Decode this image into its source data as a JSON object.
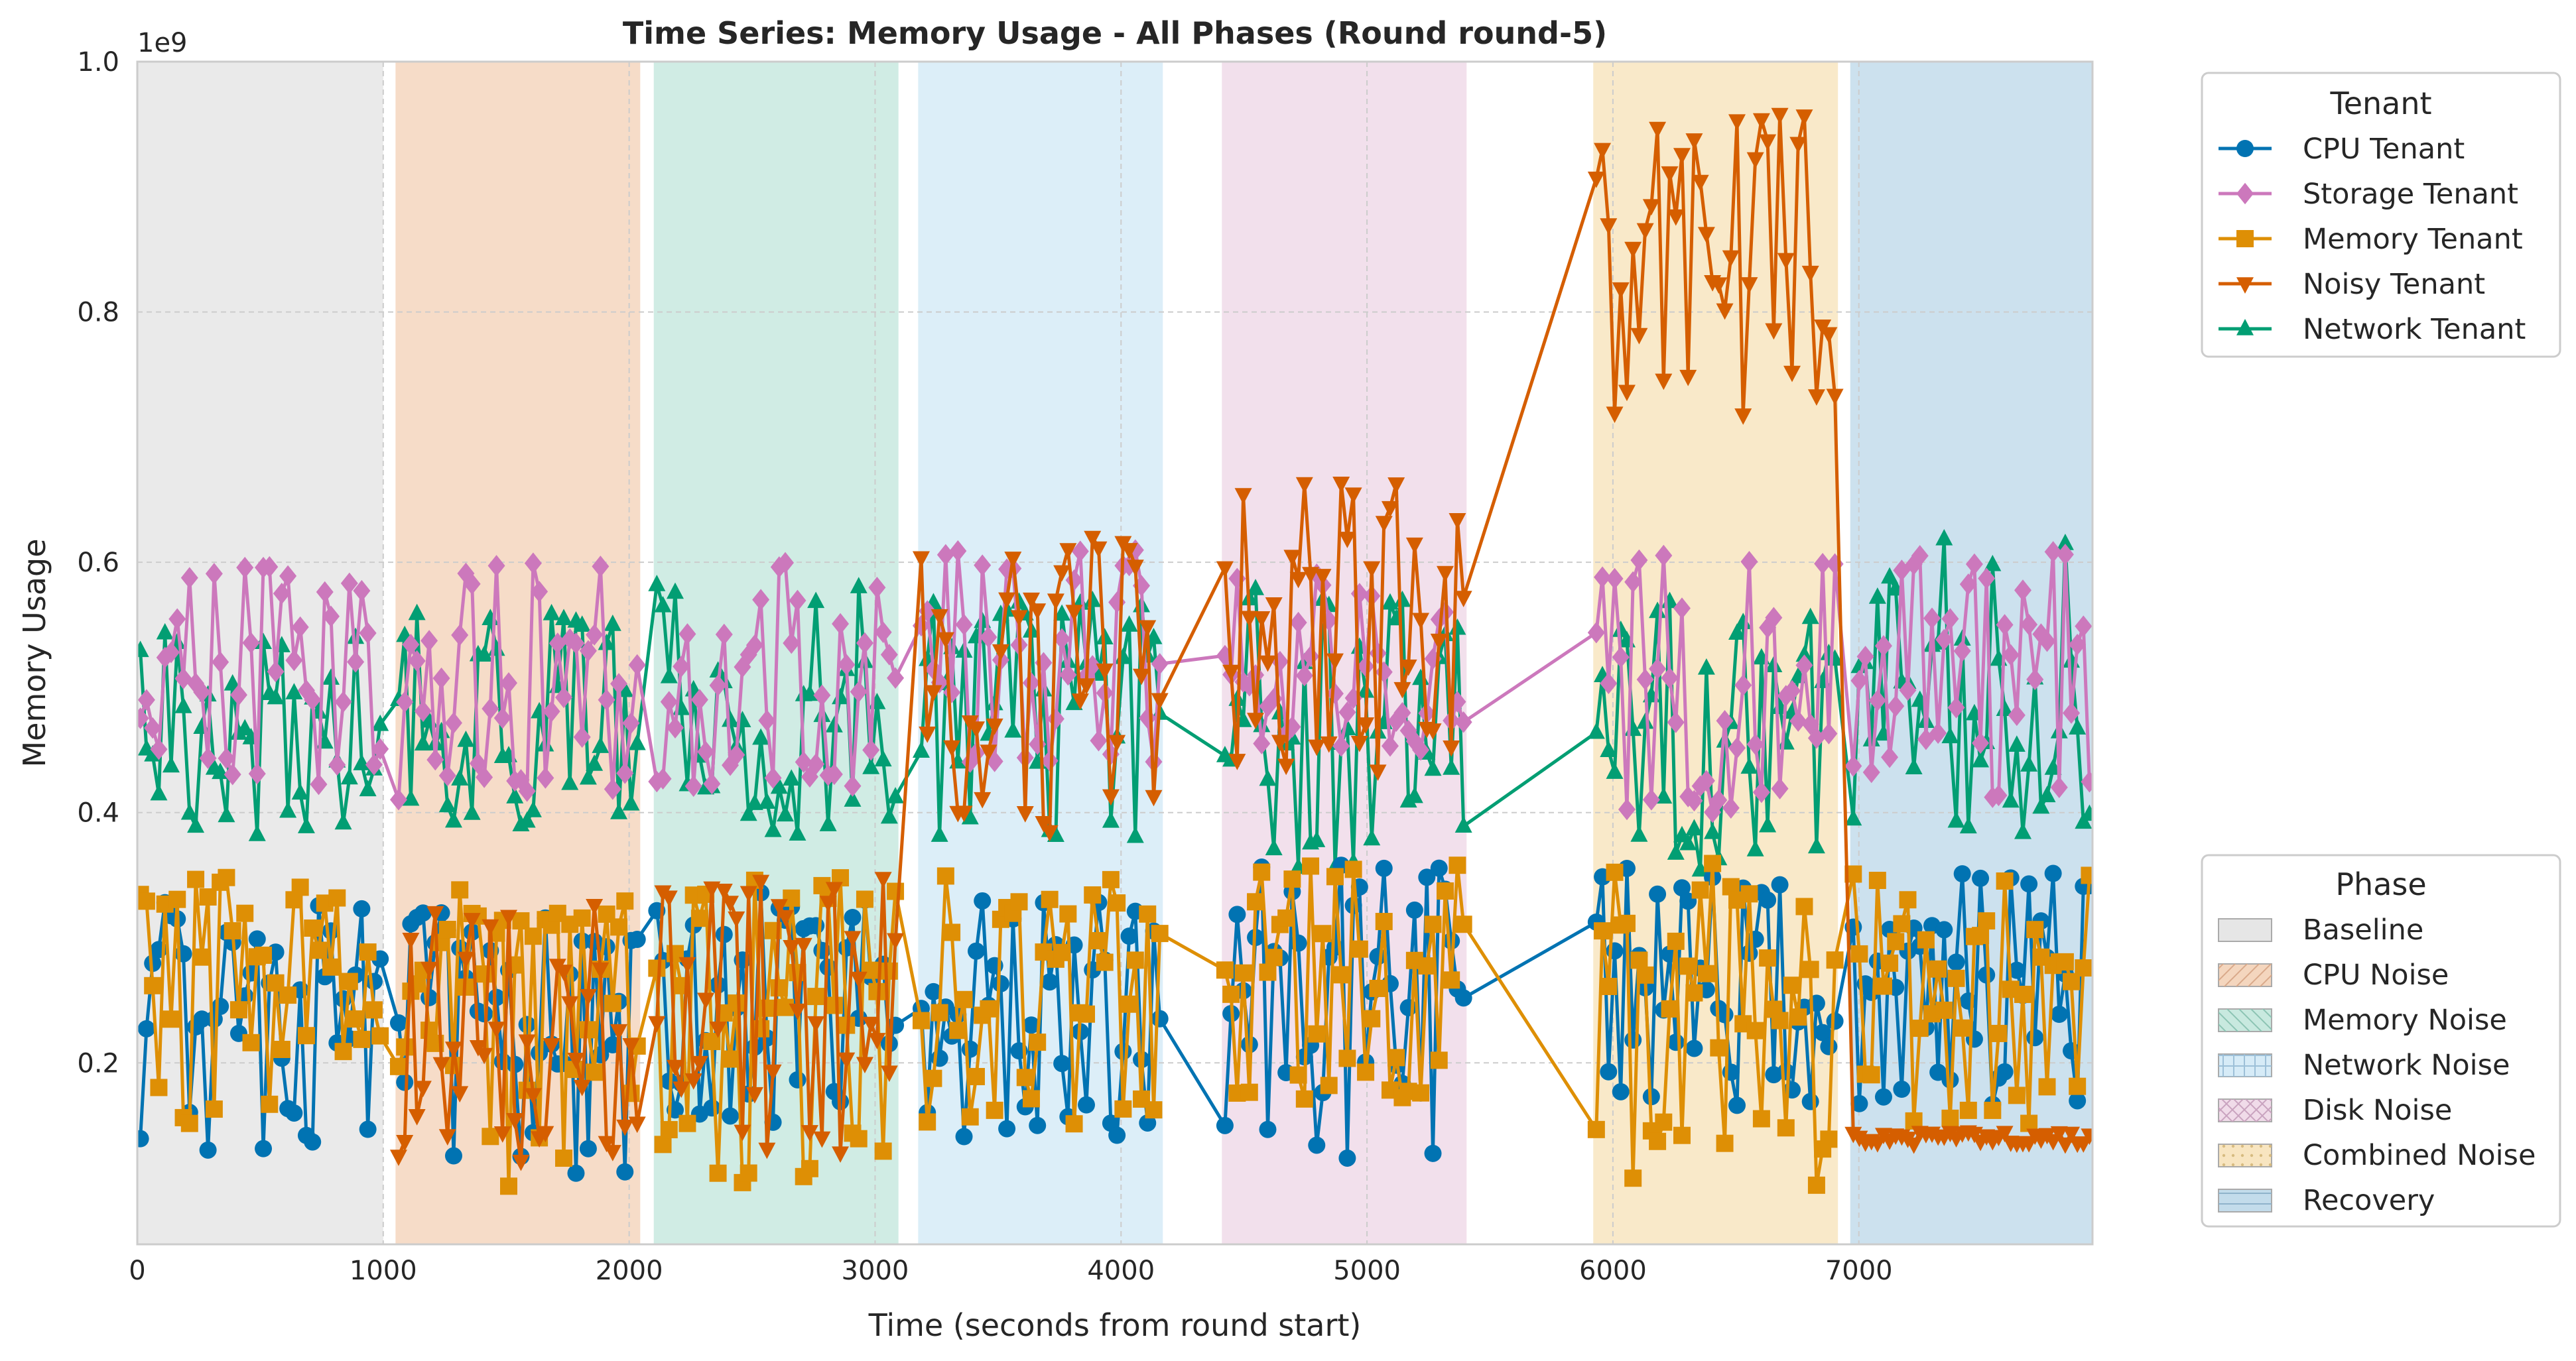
{
  "chart_data": {
    "type": "line",
    "title": "Time Series: Memory Usage - All Phases (Round round-5)",
    "xlabel": "Time (seconds from round start)",
    "ylabel": "Memory Usage",
    "y_offset_label": "1e9",
    "xlim": [
      0,
      7950
    ],
    "ylim": [
      0.055,
      1.0
    ],
    "x_ticks": [
      0,
      1000,
      2000,
      3000,
      4000,
      5000,
      6000,
      7000
    ],
    "y_ticks": [
      0.2,
      0.4,
      0.6,
      0.8,
      1.0
    ],
    "y_tick_labels": [
      "0.2",
      "0.4",
      "0.6",
      "0.8",
      "1.0"
    ],
    "grid": true,
    "tenant_legend": {
      "title": "Tenant",
      "placement": "top-right outside",
      "items": [
        {
          "name": "CPU Tenant",
          "color": "#0173b2",
          "marker": "circle"
        },
        {
          "name": "Storage Tenant",
          "color": "#cc78bc",
          "marker": "diamond"
        },
        {
          "name": "Memory Tenant",
          "color": "#de8f05",
          "marker": "square"
        },
        {
          "name": "Noisy Tenant",
          "color": "#d55e00",
          "marker": "triangle-down"
        },
        {
          "name": "Network Tenant",
          "color": "#029e73",
          "marker": "triangle-up"
        }
      ]
    },
    "phase_legend": {
      "title": "Phase",
      "placement": "bottom-right outside",
      "items": [
        {
          "name": "Baseline",
          "color": "#e6e6e6",
          "hatch": "none"
        },
        {
          "name": "CPU Noise",
          "color": "#f4d6be",
          "hatch": "diagonal"
        },
        {
          "name": "Memory Noise",
          "color": "#c8e9df",
          "hatch": "back-diagonal"
        },
        {
          "name": "Network Noise",
          "color": "#d6ebf7",
          "hatch": "grid"
        },
        {
          "name": "Disk Noise",
          "color": "#f0dbe9",
          "hatch": "cross"
        },
        {
          "name": "Combined Noise",
          "color": "#f8e5c0",
          "hatch": "dots"
        },
        {
          "name": "Recovery",
          "color": "#c3dceb",
          "hatch": "horizontal"
        }
      ]
    },
    "phases": [
      {
        "name": "Baseline",
        "start": 0,
        "end": 1000,
        "color": "#e6e6e6"
      },
      {
        "name": "CPU Noise",
        "start": 1050,
        "end": 2045,
        "color": "#f4d6be"
      },
      {
        "name": "Memory Noise",
        "start": 2100,
        "end": 3095,
        "color": "#c8e9df"
      },
      {
        "name": "Network Noise",
        "start": 3175,
        "end": 4170,
        "color": "#d6ebf7"
      },
      {
        "name": "Disk Noise",
        "start": 4410,
        "end": 5405,
        "color": "#f0dbe9"
      },
      {
        "name": "Combined Noise",
        "start": 5920,
        "end": 6915,
        "color": "#f8e5c0"
      },
      {
        "name": "Recovery",
        "start": 6965,
        "end": 7950,
        "color": "#c3dceb"
      }
    ],
    "series": [
      {
        "name": "CPU Tenant",
        "color": "#0173b2",
        "marker": "circle",
        "segments": [
          {
            "start": 0,
            "end": 1000,
            "low": 0.13,
            "high": 0.34,
            "mean": 0.25
          },
          {
            "start": 1050,
            "end": 2045,
            "low": 0.11,
            "high": 0.32,
            "mean": 0.24
          },
          {
            "start": 2100,
            "end": 3095,
            "low": 0.15,
            "high": 0.34,
            "mean": 0.26
          },
          {
            "start": 3175,
            "end": 4170,
            "low": 0.14,
            "high": 0.33,
            "mean": 0.25
          },
          {
            "start": 4410,
            "end": 5405,
            "low": 0.11,
            "high": 0.36,
            "mean": 0.24
          },
          {
            "start": 5920,
            "end": 6915,
            "low": 0.16,
            "high": 0.36,
            "mean": 0.26
          },
          {
            "start": 6965,
            "end": 7950,
            "low": 0.16,
            "high": 0.36,
            "mean": 0.26
          }
        ]
      },
      {
        "name": "Storage Tenant",
        "color": "#cc78bc",
        "marker": "diamond",
        "segments": [
          {
            "start": 0,
            "end": 1000,
            "low": 0.42,
            "high": 0.6,
            "mean": 0.51
          },
          {
            "start": 1050,
            "end": 2045,
            "low": 0.41,
            "high": 0.6,
            "mean": 0.51
          },
          {
            "start": 2100,
            "end": 3095,
            "low": 0.42,
            "high": 0.6,
            "mean": 0.51
          },
          {
            "start": 3175,
            "end": 4170,
            "low": 0.43,
            "high": 0.61,
            "mean": 0.52
          },
          {
            "start": 4410,
            "end": 5405,
            "low": 0.45,
            "high": 0.6,
            "mean": 0.52
          },
          {
            "start": 5920,
            "end": 6915,
            "low": 0.39,
            "high": 0.61,
            "mean": 0.51
          },
          {
            "start": 6965,
            "end": 7950,
            "low": 0.41,
            "high": 0.61,
            "mean": 0.51
          }
        ]
      },
      {
        "name": "Memory Tenant",
        "color": "#de8f05",
        "marker": "square",
        "segments": [
          {
            "start": 0,
            "end": 1000,
            "low": 0.15,
            "high": 0.35,
            "mean": 0.26
          },
          {
            "start": 1050,
            "end": 2045,
            "low": 0.1,
            "high": 0.34,
            "mean": 0.24
          },
          {
            "start": 2100,
            "end": 3095,
            "low": 0.1,
            "high": 0.35,
            "mean": 0.25
          },
          {
            "start": 3175,
            "end": 4170,
            "low": 0.15,
            "high": 0.35,
            "mean": 0.27
          },
          {
            "start": 4410,
            "end": 5405,
            "low": 0.17,
            "high": 0.36,
            "mean": 0.27
          },
          {
            "start": 5920,
            "end": 6915,
            "low": 0.1,
            "high": 0.36,
            "mean": 0.27
          },
          {
            "start": 6965,
            "end": 7950,
            "low": 0.15,
            "high": 0.36,
            "mean": 0.27
          }
        ]
      },
      {
        "name": "Noisy Tenant",
        "color": "#d55e00",
        "marker": "triangle-down",
        "segments": [
          {
            "start": 1050,
            "end": 2045,
            "low": 0.12,
            "high": 0.33,
            "mean": 0.23
          },
          {
            "start": 2100,
            "end": 3095,
            "low": 0.1,
            "high": 0.35,
            "mean": 0.24
          },
          {
            "start": 3175,
            "end": 4170,
            "low": 0.38,
            "high": 0.63,
            "mean": 0.51
          },
          {
            "start": 4410,
            "end": 5405,
            "low": 0.43,
            "high": 0.67,
            "mean": 0.56
          },
          {
            "start": 5920,
            "end": 6915,
            "low": 0.7,
            "high": 0.96,
            "mean": 0.85
          },
          {
            "start": 6965,
            "end": 7950,
            "low": 0.14,
            "high": 0.16,
            "mean": 0.14
          }
        ]
      },
      {
        "name": "Network Tenant",
        "color": "#029e73",
        "marker": "triangle-up",
        "segments": [
          {
            "start": 0,
            "end": 1000,
            "low": 0.38,
            "high": 0.56,
            "mean": 0.46
          },
          {
            "start": 1050,
            "end": 2045,
            "low": 0.39,
            "high": 0.56,
            "mean": 0.46
          },
          {
            "start": 2100,
            "end": 3095,
            "low": 0.38,
            "high": 0.59,
            "mean": 0.47
          },
          {
            "start": 3175,
            "end": 4170,
            "low": 0.38,
            "high": 0.57,
            "mean": 0.48
          },
          {
            "start": 4410,
            "end": 5405,
            "low": 0.35,
            "high": 0.58,
            "mean": 0.47
          },
          {
            "start": 5920,
            "end": 6915,
            "low": 0.35,
            "high": 0.57,
            "mean": 0.47
          },
          {
            "start": 6965,
            "end": 7950,
            "low": 0.38,
            "high": 0.62,
            "mean": 0.48
          }
        ]
      }
    ]
  }
}
